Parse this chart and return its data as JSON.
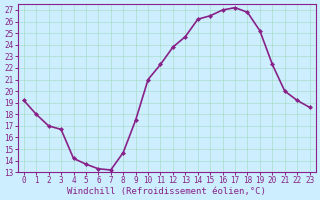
{
  "x": [
    0,
    1,
    2,
    3,
    4,
    5,
    6,
    7,
    8,
    9,
    10,
    11,
    12,
    13,
    14,
    15,
    16,
    17,
    18,
    19,
    20,
    21,
    22,
    23
  ],
  "y": [
    19.2,
    18.0,
    17.0,
    16.7,
    14.2,
    13.7,
    13.3,
    13.2,
    14.7,
    17.5,
    21.0,
    22.3,
    23.8,
    24.7,
    26.2,
    26.5,
    27.0,
    27.2,
    26.8,
    25.2,
    22.3,
    20.0,
    19.2,
    18.6
  ],
  "line_color": "#882288",
  "marker": "D",
  "marker_size": 2,
  "bg_color": "#cceeff",
  "grid_color": "#aaddcc",
  "xlabel": "Windchill (Refroidissement éolien,°C)",
  "xlabel_fontsize": 6.5,
  "xlim": [
    -0.5,
    23.5
  ],
  "ylim": [
    13,
    27.5
  ],
  "yticks": [
    13,
    14,
    15,
    16,
    17,
    18,
    19,
    20,
    21,
    22,
    23,
    24,
    25,
    26,
    27
  ],
  "xticks": [
    0,
    1,
    2,
    3,
    4,
    5,
    6,
    7,
    8,
    9,
    10,
    11,
    12,
    13,
    14,
    15,
    16,
    17,
    18,
    19,
    20,
    21,
    22,
    23
  ],
  "tick_fontsize": 5.5,
  "line_width": 1.2,
  "spine_color": "#882288"
}
